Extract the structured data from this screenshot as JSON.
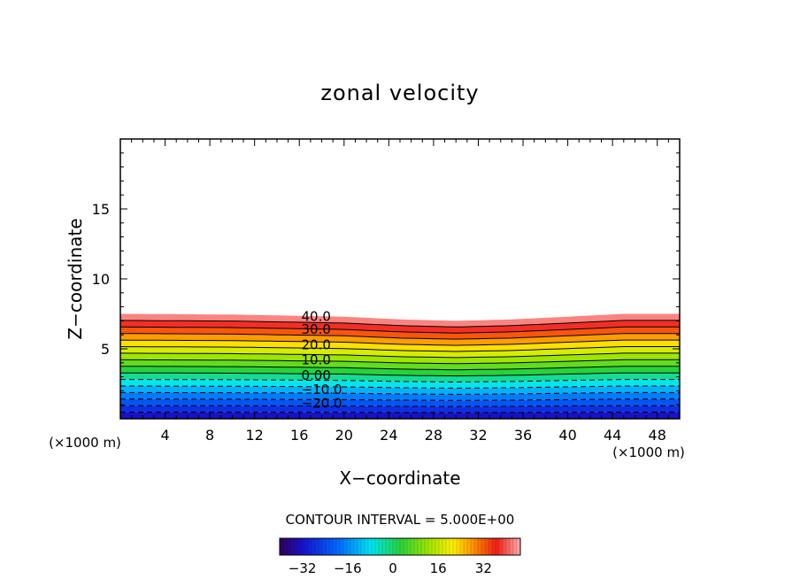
{
  "chart_data": {
    "type": "contour",
    "title": "zonal velocity",
    "xlabel": "X−coordinate",
    "ylabel": "Z−coordinate",
    "x_unit_left": "(×1000 m)",
    "x_unit_right": "(×1000 m)",
    "xlim": [
      0,
      50
    ],
    "ylim": [
      0,
      20
    ],
    "x_ticks": [
      "4",
      "8",
      "12",
      "16",
      "20",
      "24",
      "28",
      "32",
      "36",
      "40",
      "44",
      "48"
    ],
    "x_tick_values": [
      4,
      8,
      12,
      16,
      20,
      24,
      28,
      32,
      36,
      40,
      44,
      48
    ],
    "y_ticks": [
      "5",
      "10",
      "15"
    ],
    "y_tick_values": [
      5,
      10,
      15
    ],
    "contour_interval_text": "CONTOUR INTERVAL = 5.000E+00",
    "contour_levels": [
      -30,
      -25,
      -20,
      -15,
      -10,
      -5,
      0,
      5,
      10,
      15,
      20,
      25,
      30,
      35,
      40,
      45
    ],
    "contour_labels": [
      {
        "text": "40.0",
        "x": 17.5,
        "y": 7.3,
        "level": 40
      },
      {
        "text": "30.0",
        "x": 17.5,
        "y": 6.4,
        "level": 30
      },
      {
        "text": "20.0",
        "x": 17.5,
        "y": 5.3,
        "level": 20
      },
      {
        "text": "10.0",
        "x": 17.5,
        "y": 4.2,
        "level": 10
      },
      {
        "text": "0.00",
        "x": 17.5,
        "y": 3.1,
        "level": 0
      },
      {
        "text": "−10.0",
        "x": 18.0,
        "y": 2.1,
        "level": -10
      },
      {
        "text": "−20.0",
        "x": 18.0,
        "y": 1.1,
        "level": -20
      }
    ],
    "field": {
      "description": "velocity increases roughly linearly with height from about -35 at z=0 to 45 at the top of the layer; layer top near z=7.5 at the edges dipping to about 7.0 near x=28",
      "z_top_profile": {
        "x": [
          0,
          10,
          20,
          25,
          30,
          35,
          40,
          45,
          50
        ],
        "z": [
          7.5,
          7.45,
          7.3,
          7.1,
          7.0,
          7.1,
          7.3,
          7.5,
          7.5
        ]
      },
      "value_at_bottom": -35,
      "value_at_top": 45
    },
    "colorbar": {
      "min": -40,
      "max": 45,
      "ticks": [
        "−32",
        "−16",
        "0",
        "16",
        "32"
      ],
      "tick_values": [
        -32,
        -16,
        0,
        16,
        32
      ]
    }
  }
}
